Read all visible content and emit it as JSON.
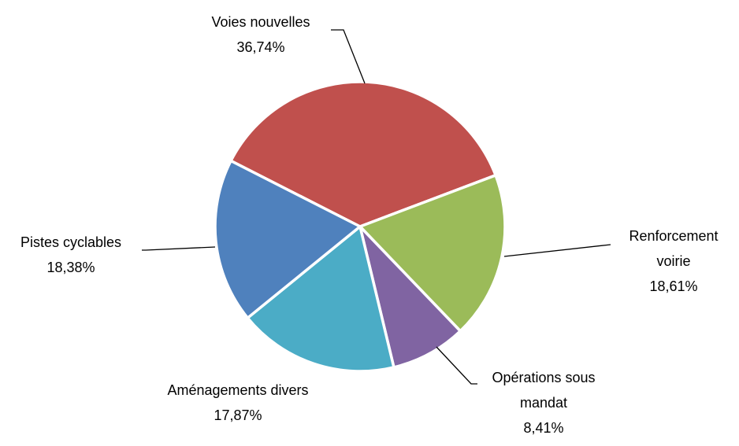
{
  "chart_data": {
    "type": "pie",
    "categories": [
      "Voies nouvelles",
      "Renforcement voirie",
      "Opérations sous mandat",
      "Aménagements divers",
      "Pistes cyclables"
    ],
    "values": [
      36.74,
      18.61,
      8.41,
      17.87,
      18.38
    ],
    "value_labels": [
      "36,74%",
      "18,61%",
      "8,41%",
      "17,87%",
      "18,38%"
    ],
    "colors": [
      "#c0504d",
      "#9bbb59",
      "#8064a2",
      "#4bacc6",
      "#4f81bd"
    ]
  }
}
